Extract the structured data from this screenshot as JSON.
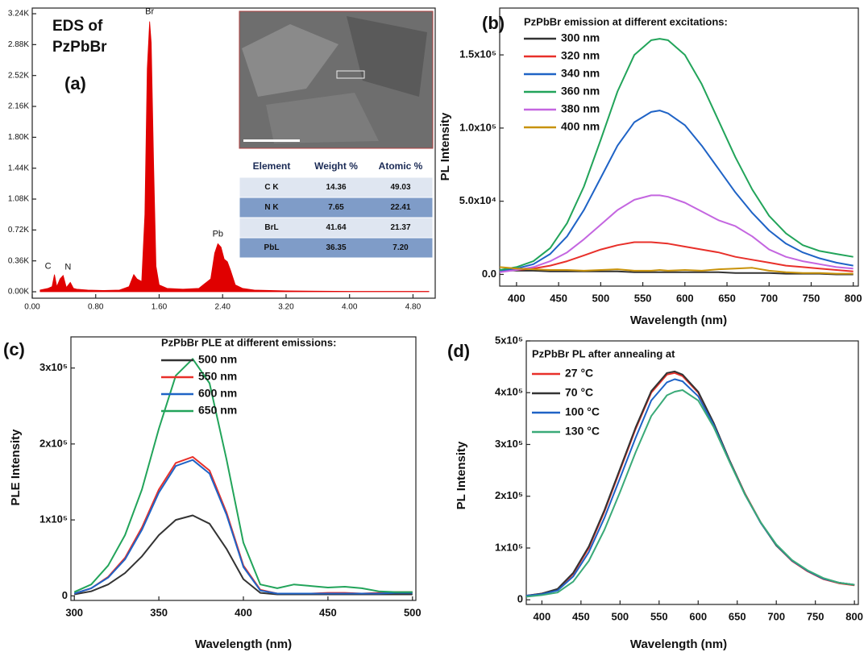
{
  "chart_data": [
    {
      "type": "area",
      "panel_label": "(a)",
      "title": "EDS of PzPbBr",
      "x": [
        0.1,
        0.2,
        0.25,
        0.28,
        0.31,
        0.35,
        0.39,
        0.43,
        0.48,
        0.52,
        0.56,
        0.7,
        0.9,
        1.1,
        1.22,
        1.28,
        1.32,
        1.38,
        1.42,
        1.45,
        1.48,
        1.5,
        1.53,
        1.56,
        1.6,
        1.7,
        1.9,
        2.1,
        2.25,
        2.3,
        2.34,
        2.38,
        2.42,
        2.46,
        2.5,
        2.56,
        2.65,
        2.8,
        3.2,
        4.0,
        4.8,
        5.0
      ],
      "series": [
        {
          "color": "#e00000",
          "values": [
            20,
            40,
            60,
            200,
            60,
            150,
            190,
            50,
            110,
            40,
            30,
            20,
            15,
            20,
            60,
            200,
            150,
            120,
            900,
            2600,
            3150,
            2900,
            1500,
            300,
            80,
            40,
            30,
            40,
            150,
            450,
            560,
            520,
            380,
            350,
            250,
            80,
            40,
            20,
            10,
            5,
            5,
            5
          ]
        }
      ],
      "annotations": [
        "C",
        "N",
        "Br",
        "Pb"
      ],
      "xlim": [
        0,
        5.08
      ],
      "ylim": [
        -75,
        3306
      ],
      "xticks": [
        {
          "value": 0,
          "label": "0.00"
        },
        {
          "value": 0.8,
          "label": "0.80"
        },
        {
          "value": 1.6,
          "label": "1.60"
        },
        {
          "value": 2.4,
          "label": "2.40"
        },
        {
          "value": 3.2,
          "label": "3.20"
        },
        {
          "value": 4,
          "label": "4.00"
        },
        {
          "value": 4.8,
          "label": "4.80"
        }
      ],
      "yticks": [
        {
          "value": 0,
          "label": "0.00K"
        },
        {
          "value": 360,
          "label": "0.36K"
        },
        {
          "value": 720,
          "label": "0.72K"
        },
        {
          "value": 1080,
          "label": "1.08K"
        },
        {
          "value": 1440,
          "label": "1.44K"
        },
        {
          "value": 1800,
          "label": "1.80K"
        },
        {
          "value": 2160,
          "label": "2.16K"
        },
        {
          "value": 2520,
          "label": "2.52K"
        },
        {
          "value": 2880,
          "label": "2.88K"
        },
        {
          "value": 3240,
          "label": "3.24K"
        }
      ],
      "table": {
        "header": [
          "Element",
          "Weight %",
          "Atomic %"
        ],
        "rows": [
          [
            "C K",
            "14.36",
            "49.03"
          ],
          [
            "N K",
            "7.65",
            "22.41"
          ],
          [
            "BrL",
            "41.64",
            "21.37"
          ],
          [
            "PbL",
            "36.35",
            "7.20"
          ]
        ]
      }
    },
    {
      "type": "line",
      "panel_label": "(b)",
      "legend_title": "PzPbBr emission at different excitations:",
      "xlabel": "Wavelength (nm)",
      "ylabel": "PL Intensity",
      "x": [
        380,
        400,
        420,
        440,
        460,
        480,
        500,
        520,
        540,
        560,
        570,
        580,
        600,
        620,
        640,
        660,
        680,
        700,
        720,
        740,
        760,
        780,
        800
      ],
      "series": [
        {
          "name": "300 nm",
          "color": "#333333",
          "values": [
            3000,
            2500,
            2500,
            2000,
            2000,
            2000,
            2000,
            2000,
            1500,
            1500,
            1500,
            1500,
            1500,
            1500,
            1500,
            1000,
            1000,
            1000,
            500,
            500,
            500,
            0,
            0
          ]
        },
        {
          "name": "320 nm",
          "color": "#e8302a",
          "values": [
            2000,
            3000,
            4000,
            6000,
            9000,
            13000,
            17000,
            20000,
            22000,
            22000,
            21500,
            21000,
            19000,
            17000,
            15000,
            12000,
            10000,
            8000,
            6000,
            5000,
            4000,
            3000,
            2000
          ]
        },
        {
          "name": "340 nm",
          "color": "#1f63c6",
          "values": [
            2500,
            4000,
            7000,
            14000,
            26000,
            44000,
            66000,
            88000,
            104000,
            111000,
            112000,
            110000,
            102000,
            88000,
            72000,
            56000,
            42000,
            30000,
            21000,
            15000,
            11000,
            8000,
            6000
          ]
        },
        {
          "name": "360 nm",
          "color": "#22a45a",
          "values": [
            3000,
            5000,
            9000,
            18000,
            35000,
            60000,
            92000,
            125000,
            150000,
            160000,
            161000,
            160000,
            150000,
            130000,
            105000,
            80000,
            58000,
            40000,
            28000,
            20000,
            16000,
            14000,
            12000
          ]
        },
        {
          "name": "380 nm",
          "color": "#c466e0",
          "values": [
            1500,
            3000,
            5000,
            9000,
            15000,
            24000,
            34000,
            44000,
            51000,
            54000,
            54000,
            53000,
            49000,
            43000,
            37000,
            33000,
            26000,
            17000,
            12000,
            9000,
            7000,
            5000,
            4000
          ]
        },
        {
          "name": "400 nm",
          "color": "#c8920a",
          "values": [
            5000,
            4000,
            3500,
            3000,
            3000,
            2500,
            3000,
            3500,
            2500,
            2500,
            3000,
            2500,
            3000,
            2500,
            3500,
            4000,
            4500,
            2500,
            1500,
            1000,
            1000,
            500,
            500
          ]
        }
      ],
      "xlim": [
        380,
        806
      ],
      "ylim": [
        -8000,
        182000
      ],
      "xticks": [
        400,
        450,
        500,
        550,
        600,
        650,
        700,
        750,
        800
      ],
      "yticks": [
        {
          "value": 0,
          "label": "0.0"
        },
        {
          "value": 50000,
          "label": "5.0x10⁴"
        },
        {
          "value": 100000,
          "label": "1.0x10⁵"
        },
        {
          "value": 150000,
          "label": "1.5x10⁵"
        }
      ]
    },
    {
      "type": "line",
      "panel_label": "(c)",
      "legend_title": "PzPbBr PLE at different emissions:",
      "xlabel": "Wavelength (nm)",
      "ylabel": "PLE Intensity",
      "x": [
        300,
        310,
        320,
        330,
        340,
        350,
        360,
        370,
        380,
        390,
        400,
        410,
        420,
        430,
        440,
        450,
        460,
        470,
        480,
        490,
        500
      ],
      "series": [
        {
          "name": "500 nm",
          "color": "#333333",
          "values": [
            2000,
            6000,
            15000,
            30000,
            52000,
            80000,
            100000,
            106000,
            95000,
            62000,
            22000,
            4000,
            2000,
            2000,
            2000,
            2000,
            2000,
            2000,
            2000,
            2000,
            2000
          ]
        },
        {
          "name": "550 nm",
          "color": "#e8302a",
          "values": [
            3000,
            10000,
            25000,
            50000,
            90000,
            140000,
            175000,
            183000,
            165000,
            110000,
            40000,
            8000,
            3000,
            3000,
            3000,
            4000,
            4000,
            3000,
            4000,
            5000,
            5000
          ]
        },
        {
          "name": "600 nm",
          "color": "#1f63c6",
          "values": [
            3000,
            10000,
            24000,
            48000,
            87000,
            136000,
            171000,
            179000,
            161000,
            107000,
            38000,
            7000,
            3000,
            3000,
            3000,
            3000,
            3000,
            3000,
            3000,
            4000,
            4000
          ]
        },
        {
          "name": "650 nm",
          "color": "#22a45a",
          "values": [
            5000,
            15000,
            40000,
            80000,
            140000,
            220000,
            290000,
            312000,
            280000,
            180000,
            70000,
            15000,
            10000,
            15000,
            13000,
            11000,
            12000,
            10000,
            6000,
            5000,
            5000
          ]
        }
      ],
      "xlim": [
        298,
        502
      ],
      "ylim": [
        -6000,
        341000
      ],
      "xticks": [
        300,
        350,
        400,
        450,
        500
      ],
      "yticks": [
        0,
        {
          "value": 100000,
          "label": "1x10⁵"
        },
        {
          "value": 200000,
          "label": "2x10⁵"
        },
        {
          "value": 300000,
          "label": "3x10⁵"
        }
      ]
    },
    {
      "type": "line",
      "panel_label": "(d)",
      "legend_title": "PzPbBr PL after annealing at",
      "xlabel": "Wavelength (nm)",
      "ylabel": "PL Intensity",
      "x": [
        380,
        400,
        420,
        440,
        460,
        480,
        500,
        520,
        540,
        560,
        570,
        580,
        600,
        620,
        640,
        660,
        680,
        700,
        720,
        740,
        760,
        780,
        800
      ],
      "series": [
        {
          "name": "27 °C",
          "color": "#e8302a",
          "values": [
            8000,
            12000,
            20000,
            50000,
            100000,
            170000,
            250000,
            330000,
            400000,
            435000,
            438000,
            432000,
            400000,
            340000,
            270000,
            205000,
            150000,
            105000,
            75000,
            55000,
            40000,
            32000,
            28000
          ]
        },
        {
          "name": "70 °C",
          "color": "#333333",
          "values": [
            8000,
            12000,
            21000,
            52000,
            103000,
            173000,
            253000,
            333000,
            403000,
            438000,
            441000,
            435000,
            402000,
            341000,
            270000,
            204000,
            149000,
            105000,
            76000,
            56000,
            41000,
            33000,
            29000
          ]
        },
        {
          "name": "100 °C",
          "color": "#1f63c6",
          "values": [
            8000,
            11000,
            18000,
            45000,
            92000,
            158000,
            235000,
            313000,
            385000,
            420000,
            426000,
            422000,
            393000,
            337000,
            268000,
            203000,
            149000,
            106000,
            76000,
            56000,
            41000,
            33000,
            29000
          ]
        },
        {
          "name": "130 °C",
          "color": "#3aaa78",
          "values": [
            6000,
            9000,
            14000,
            35000,
            75000,
            135000,
            208000,
            285000,
            355000,
            395000,
            402000,
            405000,
            385000,
            333000,
            267000,
            203000,
            150000,
            107000,
            77000,
            57000,
            42000,
            33000,
            29000
          ]
        }
      ],
      "xlim": [
        380,
        805
      ],
      "ylim": [
        -9000,
        500000
      ],
      "xticks": [
        400,
        450,
        500,
        550,
        600,
        650,
        700,
        750,
        800
      ],
      "yticks": [
        0,
        {
          "value": 100000,
          "label": "1x10⁵"
        },
        {
          "value": 200000,
          "label": "2x10⁵"
        },
        {
          "value": 300000,
          "label": "3x10⁵"
        },
        {
          "value": 400000,
          "label": "4x10⁵"
        },
        {
          "value": 500000,
          "label": "5x10⁵"
        }
      ]
    }
  ]
}
